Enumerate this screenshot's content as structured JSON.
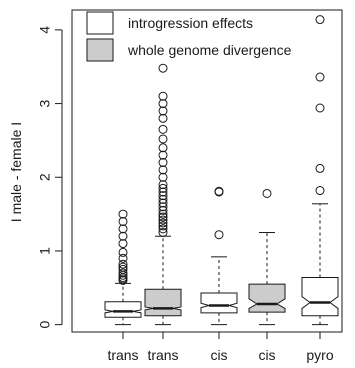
{
  "chart_data": {
    "type": "box",
    "title": "",
    "xlabel": "",
    "ylabel": "I male - female I",
    "ylim": [
      -0.1,
      4.27
    ],
    "y_ticks": [
      0,
      1,
      2,
      3,
      4
    ],
    "grid": false,
    "legend_position": "top-left",
    "legend": [
      {
        "label": "introgression effects",
        "fill": "#ffffff"
      },
      {
        "label": "whole genome divergence",
        "fill": "#cccccc"
      }
    ],
    "categories": [
      "trans",
      "trans",
      "cis",
      "cis",
      "pyro"
    ],
    "boxes": [
      {
        "category": "trans",
        "series": "introgression effects",
        "fill": "#ffffff",
        "whisker_low": 0.0,
        "q1": 0.1,
        "median": 0.18,
        "q3": 0.31,
        "whisker_high": 0.56,
        "notch_low": 0.16,
        "notch_high": 0.2,
        "outliers": [
          0.6,
          0.62,
          0.64,
          0.67,
          0.7,
          0.75,
          0.78,
          0.82,
          0.9,
          0.98,
          1.1,
          1.2,
          1.3,
          1.4,
          1.5
        ]
      },
      {
        "category": "trans",
        "series": "whole genome divergence",
        "fill": "#cccccc",
        "whisker_low": 0.0,
        "q1": 0.12,
        "median": 0.22,
        "q3": 0.48,
        "whisker_high": 1.2,
        "notch_low": 0.2,
        "notch_high": 0.24,
        "outliers": [
          1.25,
          1.3,
          1.34,
          1.38,
          1.42,
          1.46,
          1.5,
          1.55,
          1.6,
          1.65,
          1.7,
          1.75,
          1.8,
          1.85,
          1.9,
          2.0,
          2.1,
          2.2,
          2.3,
          2.4,
          2.52,
          2.65,
          2.8,
          2.9,
          3.0,
          3.1,
          3.48
        ]
      },
      {
        "category": "cis",
        "series": "introgression effects",
        "fill": "#ffffff",
        "whisker_low": 0.0,
        "q1": 0.16,
        "median": 0.26,
        "q3": 0.43,
        "whisker_high": 0.92,
        "notch_low": 0.23,
        "notch_high": 0.29,
        "outliers": [
          1.22,
          1.8,
          1.81
        ]
      },
      {
        "category": "cis",
        "series": "whole genome divergence",
        "fill": "#cccccc",
        "whisker_low": 0.0,
        "q1": 0.17,
        "median": 0.28,
        "q3": 0.55,
        "whisker_high": 1.25,
        "notch_low": 0.22,
        "notch_high": 0.35,
        "outliers": [
          1.78
        ]
      },
      {
        "category": "pyro",
        "series": "introgression effects",
        "fill": "#ffffff",
        "whisker_low": 0.0,
        "q1": 0.12,
        "median": 0.3,
        "q3": 0.64,
        "whisker_high": 1.64,
        "notch_low": 0.22,
        "notch_high": 0.38,
        "outliers": [
          1.82,
          2.12,
          2.94,
          3.36,
          4.14
        ]
      }
    ]
  }
}
